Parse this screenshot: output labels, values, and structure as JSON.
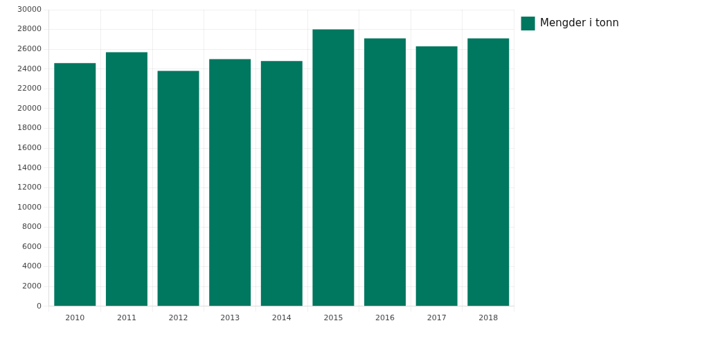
{
  "chart_data": {
    "type": "bar",
    "categories": [
      "2010",
      "2011",
      "2012",
      "2013",
      "2014",
      "2015",
      "2016",
      "2017",
      "2018"
    ],
    "series": [
      {
        "name": "Mengder i tonn",
        "color": "#00775f",
        "values": [
          24600,
          25700,
          23800,
          25000,
          24800,
          28000,
          27100,
          26300,
          27100
        ]
      }
    ],
    "ylim": [
      0,
      30000
    ],
    "yticks": [
      0,
      2000,
      4000,
      6000,
      8000,
      10000,
      12000,
      14000,
      16000,
      18000,
      20000,
      22000,
      24000,
      26000,
      28000,
      30000
    ],
    "grid": true,
    "legend": "upper right"
  }
}
